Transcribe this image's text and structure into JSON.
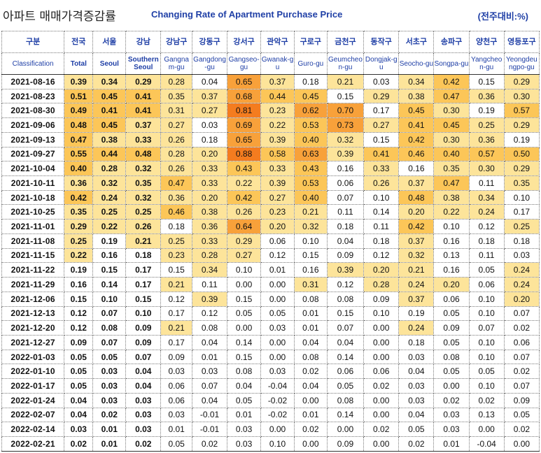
{
  "header": {
    "title_ko": "아파트 매매가격증감률",
    "title_en": "Changing Rate of Apartment Purchase Price",
    "unit": "(전주대비:%)"
  },
  "table": {
    "row_label_ko": "구분",
    "row_label_en": "Classification",
    "columns": [
      {
        "ko": "전국",
        "en": "Total",
        "bold": true
      },
      {
        "ko": "서울",
        "en": "Seoul",
        "bold": true
      },
      {
        "ko": "강남",
        "en": "Southern Seoul",
        "bold": true
      },
      {
        "ko": "강남구",
        "en": "Gangnam-gu",
        "bold": false
      },
      {
        "ko": "강동구",
        "en": "Gangdong-gu",
        "bold": false
      },
      {
        "ko": "강서구",
        "en": "Gangseo-gu",
        "bold": false
      },
      {
        "ko": "관악구",
        "en": "Gwanak-gu",
        "bold": false
      },
      {
        "ko": "구로구",
        "en": "Guro-gu",
        "bold": false
      },
      {
        "ko": "금천구",
        "en": "Geumcheon-gu",
        "bold": false
      },
      {
        "ko": "동작구",
        "en": "Dongjak-gu",
        "bold": false
      },
      {
        "ko": "서초구",
        "en": "Seocho-gu",
        "bold": false
      },
      {
        "ko": "송파구",
        "en": "Songpa-gu",
        "bold": false
      },
      {
        "ko": "양천구",
        "en": "Yangcheon-gu",
        "bold": false
      },
      {
        "ko": "영등포구",
        "en": "Yeongdeungpo-gu",
        "bold": false
      }
    ]
  },
  "chart_data": {
    "type": "table",
    "title": "Changing Rate of Apartment Purchase Price",
    "unit": "(전주대비:%)",
    "columns": [
      "Total",
      "Seoul",
      "Southern Seoul",
      "Gangnam-gu",
      "Gangdong-gu",
      "Gangseo-gu",
      "Gwanak-gu",
      "Guro-gu",
      "Geumcheon-gu",
      "Dongjak-gu",
      "Seocho-gu",
      "Songpa-gu",
      "Yangcheon-gu",
      "Yeongdeungpo-gu"
    ],
    "rows": [
      {
        "date": "2021-08-16",
        "values": [
          0.39,
          0.34,
          0.29,
          0.28,
          0.04,
          0.65,
          0.37,
          0.18,
          0.21,
          0.03,
          0.34,
          0.42,
          0.15,
          0.29
        ]
      },
      {
        "date": "2021-08-23",
        "values": [
          0.51,
          0.45,
          0.41,
          0.35,
          0.37,
          0.68,
          0.44,
          0.45,
          0.15,
          0.29,
          0.38,
          0.47,
          0.36,
          0.3
        ]
      },
      {
        "date": "2021-08-30",
        "values": [
          0.49,
          0.41,
          0.41,
          0.31,
          0.27,
          0.81,
          0.23,
          0.62,
          0.7,
          0.17,
          0.45,
          0.3,
          0.19,
          0.57
        ]
      },
      {
        "date": "2021-09-06",
        "values": [
          0.48,
          0.45,
          0.37,
          0.27,
          0.03,
          0.69,
          0.22,
          0.53,
          0.73,
          0.27,
          0.41,
          0.45,
          0.25,
          0.29
        ]
      },
      {
        "date": "2021-09-13",
        "values": [
          0.47,
          0.38,
          0.33,
          0.26,
          0.18,
          0.65,
          0.39,
          0.4,
          0.32,
          0.15,
          0.42,
          0.3,
          0.36,
          0.19
        ]
      },
      {
        "date": "2021-09-27",
        "values": [
          0.55,
          0.44,
          0.48,
          0.28,
          0.2,
          0.88,
          0.58,
          0.63,
          0.39,
          0.41,
          0.46,
          0.4,
          0.57,
          0.5
        ]
      },
      {
        "date": "2021-10-04",
        "values": [
          0.4,
          0.28,
          0.32,
          0.26,
          0.33,
          0.43,
          0.33,
          0.43,
          0.16,
          0.33,
          0.16,
          0.35,
          0.3,
          0.29
        ]
      },
      {
        "date": "2021-10-11",
        "values": [
          0.36,
          0.32,
          0.35,
          0.47,
          0.33,
          0.22,
          0.39,
          0.53,
          0.06,
          0.26,
          0.37,
          0.47,
          0.11,
          0.35
        ]
      },
      {
        "date": "2021-10-18",
        "values": [
          0.42,
          0.24,
          0.32,
          0.36,
          0.2,
          0.42,
          0.27,
          0.4,
          0.07,
          0.1,
          0.48,
          0.38,
          0.34,
          0.1
        ]
      },
      {
        "date": "2021-10-25",
        "values": [
          0.35,
          0.25,
          0.25,
          0.46,
          0.38,
          0.26,
          0.23,
          0.21,
          0.11,
          0.14,
          0.2,
          0.22,
          0.24,
          0.17
        ]
      },
      {
        "date": "2021-11-01",
        "values": [
          0.29,
          0.22,
          0.26,
          0.18,
          0.36,
          0.64,
          0.2,
          0.32,
          0.18,
          0.11,
          0.42,
          0.1,
          0.12,
          0.25
        ]
      },
      {
        "date": "2021-11-08",
        "values": [
          0.25,
          0.19,
          0.21,
          0.25,
          0.33,
          0.29,
          0.06,
          0.1,
          0.04,
          0.18,
          0.37,
          0.16,
          0.18,
          0.18
        ]
      },
      {
        "date": "2021-11-15",
        "values": [
          0.22,
          0.16,
          0.18,
          0.23,
          0.28,
          0.27,
          0.12,
          0.15,
          0.09,
          0.12,
          0.32,
          0.13,
          0.11,
          0.03
        ]
      },
      {
        "date": "2021-11-22",
        "values": [
          0.19,
          0.15,
          0.17,
          0.15,
          0.34,
          0.1,
          0.01,
          0.16,
          0.39,
          0.2,
          0.21,
          0.16,
          0.05,
          0.24
        ]
      },
      {
        "date": "2021-11-29",
        "values": [
          0.16,
          0.14,
          0.17,
          0.21,
          0.11,
          0.0,
          0.0,
          0.31,
          0.12,
          0.28,
          0.24,
          0.2,
          0.06,
          0.24
        ]
      },
      {
        "date": "2021-12-06",
        "values": [
          0.15,
          0.1,
          0.15,
          0.12,
          0.39,
          0.15,
          0.0,
          0.08,
          0.08,
          0.09,
          0.37,
          0.06,
          0.1,
          0.2
        ]
      },
      {
        "date": "2021-12-13",
        "values": [
          0.12,
          0.07,
          0.1,
          0.17,
          0.12,
          0.05,
          0.05,
          0.01,
          0.15,
          0.1,
          0.19,
          0.05,
          0.1,
          0.07
        ]
      },
      {
        "date": "2021-12-20",
        "values": [
          0.12,
          0.08,
          0.09,
          0.21,
          0.08,
          0.0,
          0.03,
          0.01,
          0.07,
          0.0,
          0.24,
          0.09,
          0.07,
          0.02
        ]
      },
      {
        "date": "2021-12-27",
        "values": [
          0.09,
          0.07,
          0.09,
          0.17,
          0.04,
          0.14,
          0.0,
          0.04,
          0.04,
          0.0,
          0.18,
          0.05,
          0.1,
          0.06
        ]
      },
      {
        "date": "2022-01-03",
        "values": [
          0.05,
          0.05,
          0.07,
          0.09,
          0.01,
          0.15,
          0.0,
          0.08,
          0.14,
          0.0,
          0.03,
          0.08,
          0.1,
          0.07
        ]
      },
      {
        "date": "2022-01-10",
        "values": [
          0.05,
          0.03,
          0.04,
          0.03,
          0.03,
          0.08,
          0.03,
          0.02,
          0.06,
          0.06,
          0.04,
          0.05,
          0.05,
          0.02
        ]
      },
      {
        "date": "2022-01-17",
        "values": [
          0.05,
          0.03,
          0.04,
          0.06,
          0.07,
          0.04,
          -0.04,
          0.04,
          0.05,
          0.02,
          0.03,
          0.0,
          0.1,
          0.07
        ]
      },
      {
        "date": "2022-01-24",
        "values": [
          0.04,
          0.03,
          0.03,
          0.06,
          0.04,
          0.05,
          -0.02,
          0.0,
          0.08,
          0.0,
          0.03,
          0.02,
          0.02,
          0.09
        ]
      },
      {
        "date": "2022-02-07",
        "values": [
          0.04,
          0.02,
          0.03,
          0.03,
          -0.01,
          0.01,
          -0.02,
          0.01,
          0.14,
          0.0,
          0.04,
          0.03,
          0.13,
          0.05
        ]
      },
      {
        "date": "2022-02-14",
        "values": [
          0.03,
          0.01,
          0.03,
          0.01,
          -0.01,
          0.03,
          0.0,
          0.02,
          0.0,
          0.02,
          0.05,
          0.03,
          0.0,
          0.02
        ]
      },
      {
        "date": "2022-02-21",
        "values": [
          0.02,
          0.01,
          0.02,
          0.05,
          0.02,
          0.03,
          0.1,
          0.0,
          0.09,
          0.0,
          0.02,
          0.01,
          -0.04,
          0.0
        ]
      }
    ]
  }
}
